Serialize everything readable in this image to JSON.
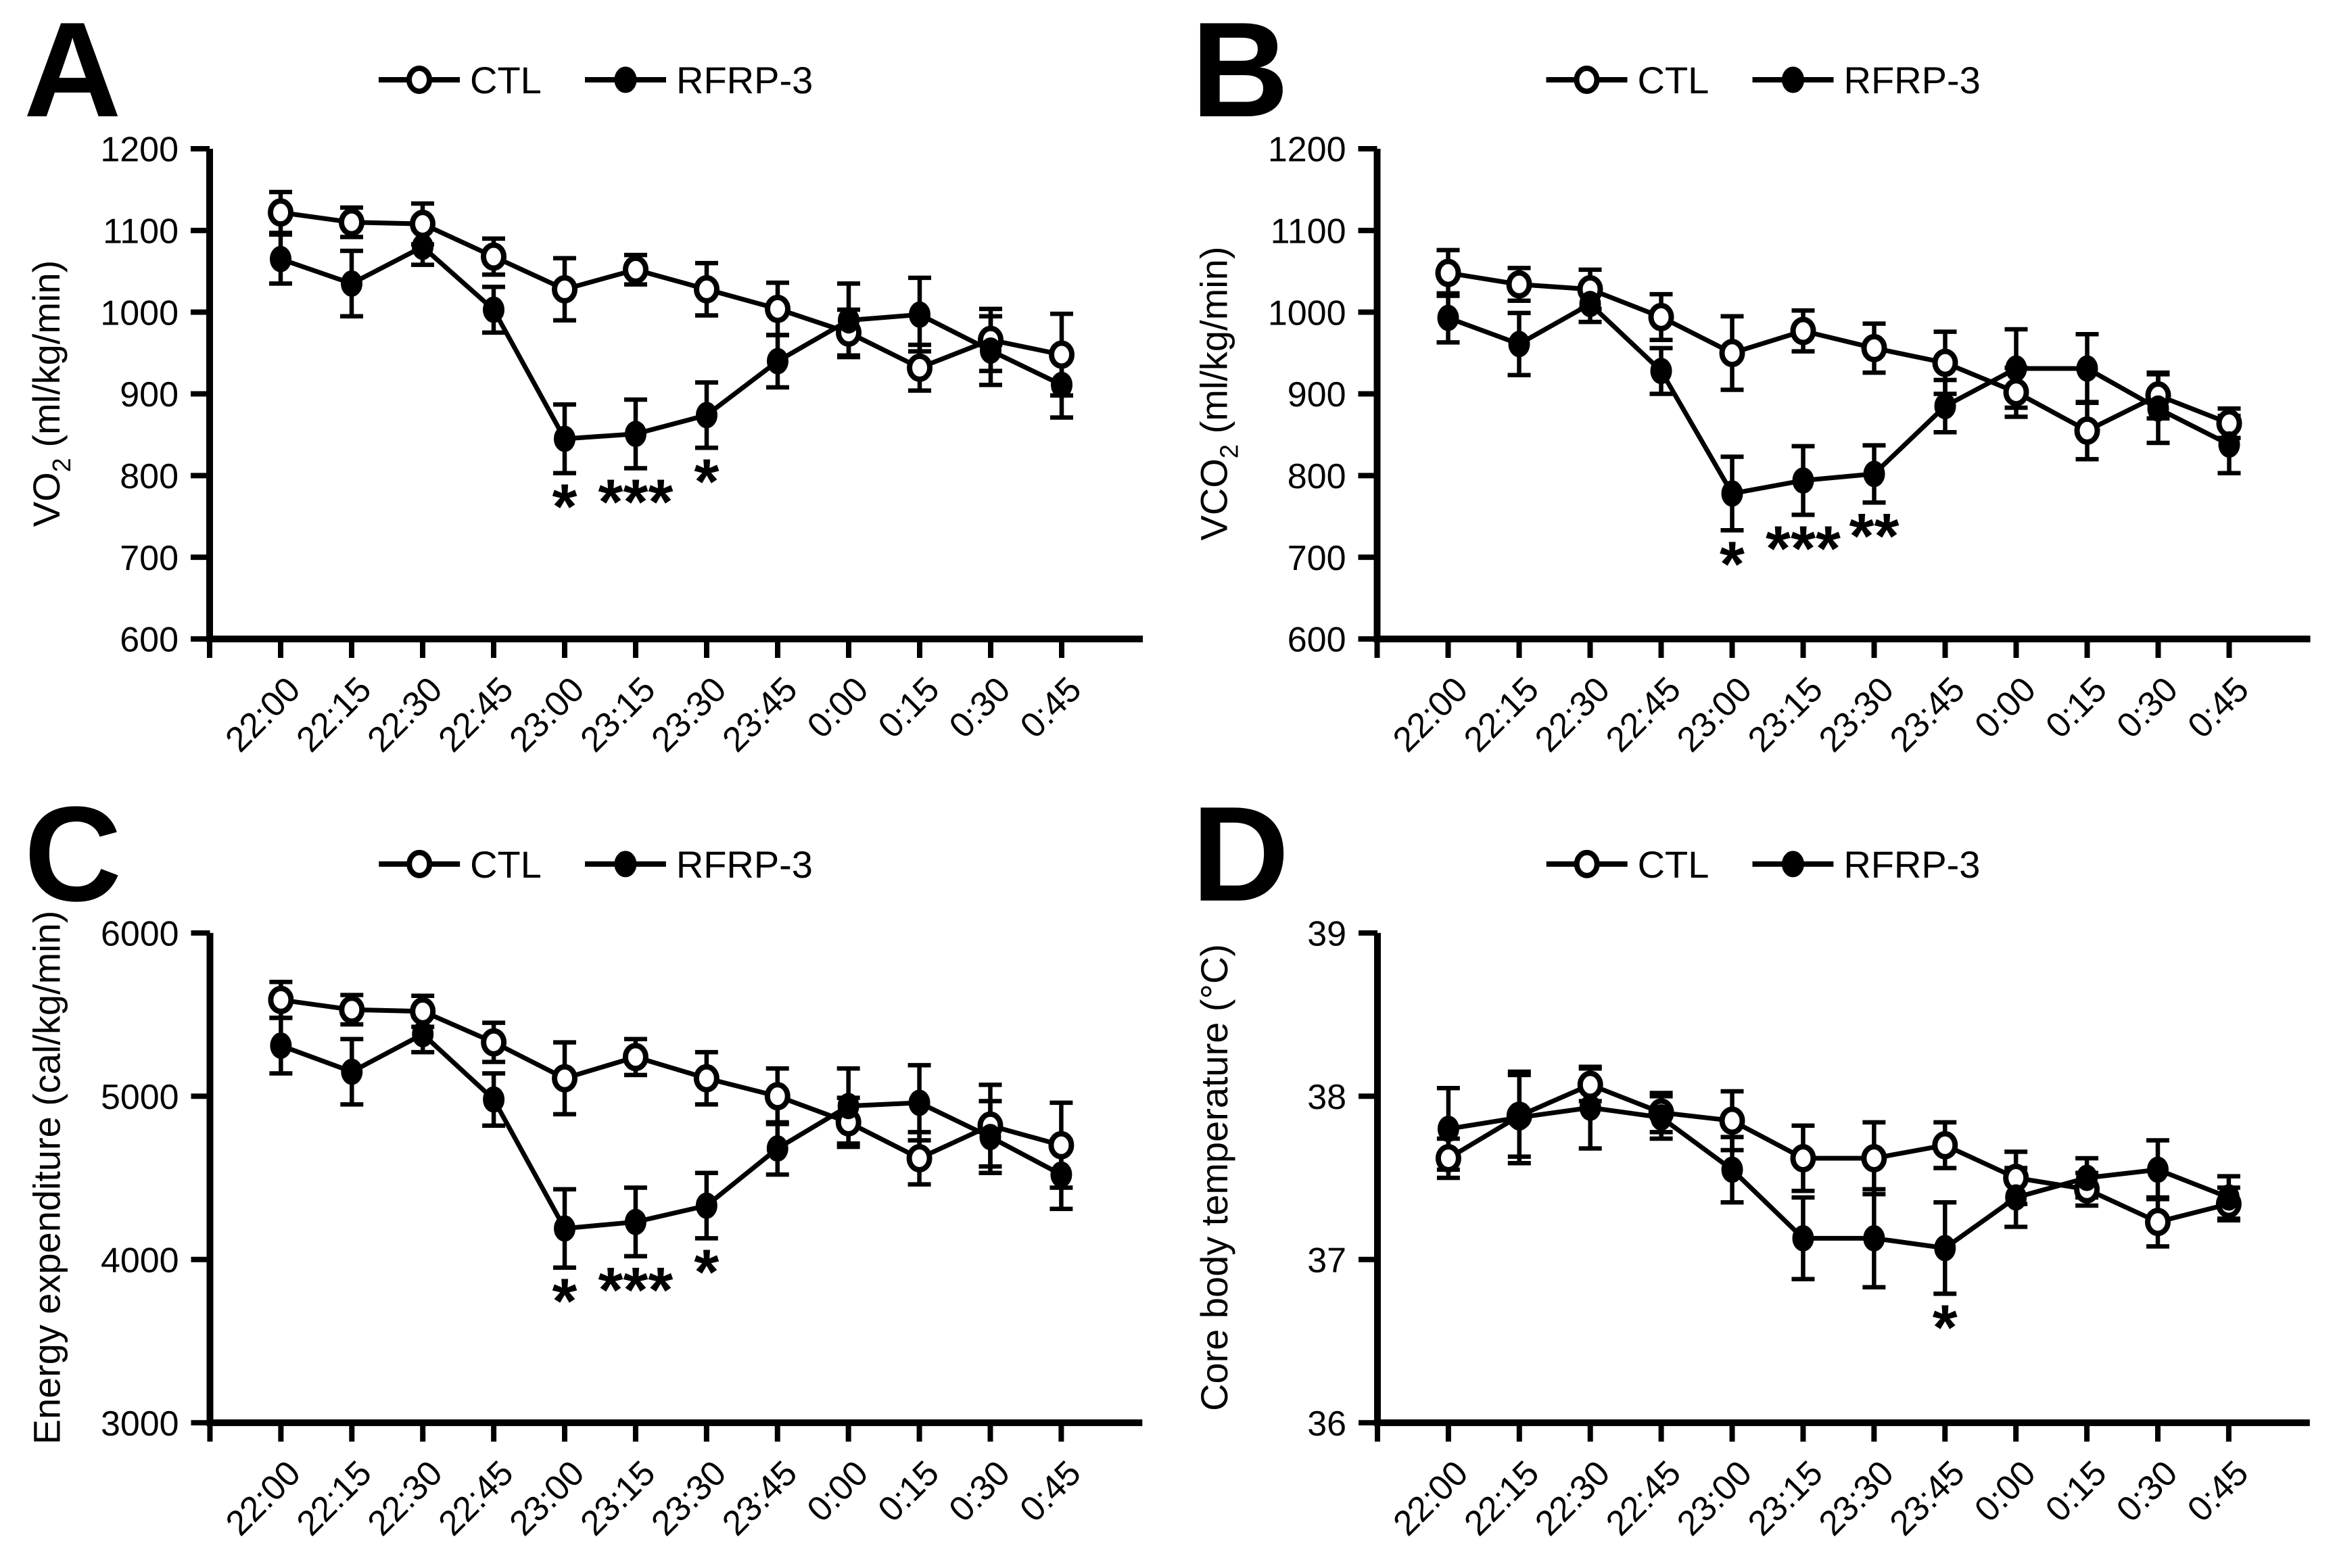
{
  "figure": {
    "background": "#ffffff",
    "ink": "#000000"
  },
  "chart_data": [
    {
      "panel": "A",
      "type": "line",
      "ylabel": [
        {
          "t": "VO"
        },
        {
          "t": "2",
          "sub": true
        },
        {
          "t": " (ml/kg/min)"
        }
      ],
      "ylim": [
        600,
        1200
      ],
      "yticks": [
        600,
        700,
        800,
        900,
        1000,
        1100,
        1200
      ],
      "categories": [
        "22:00",
        "22:15",
        "22:30",
        "22:45",
        "23:00",
        "23:15",
        "23:30",
        "23:45",
        "0:00",
        "0:15",
        "0:30",
        "0:45"
      ],
      "legend_position": "top-center",
      "grid": false,
      "series": [
        {
          "name": "CTL",
          "marker": "open-circle",
          "values": [
            1122,
            1110,
            1108,
            1068,
            1028,
            1052,
            1028,
            1004,
            975,
            932,
            966,
            948
          ],
          "errors": [
            25,
            18,
            25,
            22,
            38,
            18,
            32,
            32,
            28,
            28,
            38,
            50
          ]
        },
        {
          "name": "RFRP-3",
          "marker": "filled-circle",
          "values": [
            1065,
            1035,
            1080,
            1003,
            845,
            851,
            874,
            940,
            990,
            997,
            953,
            911
          ],
          "errors": [
            30,
            40,
            22,
            28,
            42,
            42,
            40,
            32,
            45,
            45,
            42,
            40
          ]
        }
      ],
      "significance": [
        {
          "index": 4,
          "label": "*"
        },
        {
          "index": 5,
          "label": "***"
        },
        {
          "index": 6,
          "label": "*"
        }
      ]
    },
    {
      "panel": "B",
      "type": "line",
      "ylabel": [
        {
          "t": "VCO"
        },
        {
          "t": "2",
          "sub": true
        },
        {
          "t": " (ml/kg/min)"
        }
      ],
      "ylim": [
        600,
        1200
      ],
      "yticks": [
        600,
        700,
        800,
        900,
        1000,
        1100,
        1200
      ],
      "categories": [
        "22:00",
        "22:15",
        "22:30",
        "22:45",
        "23:00",
        "23:15",
        "23:30",
        "23:45",
        "0:00",
        "0:15",
        "0:30",
        "0:45"
      ],
      "legend_position": "top-center",
      "grid": false,
      "series": [
        {
          "name": "CTL",
          "marker": "open-circle",
          "values": [
            1048,
            1034,
            1028,
            994,
            950,
            977,
            956,
            938,
            902,
            855,
            898,
            864
          ],
          "errors": [
            28,
            20,
            24,
            28,
            45,
            25,
            30,
            38,
            30,
            35,
            28,
            18
          ]
        },
        {
          "name": "RFRP-3",
          "marker": "filled-circle",
          "values": [
            993,
            961,
            1010,
            928,
            778,
            794,
            802,
            885,
            931,
            931,
            882,
            838
          ],
          "errors": [
            30,
            38,
            22,
            28,
            45,
            42,
            35,
            32,
            48,
            42,
            42,
            35
          ]
        }
      ],
      "significance": [
        {
          "index": 4,
          "label": "*"
        },
        {
          "index": 5,
          "label": "***"
        },
        {
          "index": 6,
          "label": "**"
        }
      ]
    },
    {
      "panel": "C",
      "type": "line",
      "ylabel": [
        {
          "t": "Energy expenditure (cal/kg/min)"
        }
      ],
      "ylim": [
        3000,
        6000
      ],
      "yticks": [
        3000,
        4000,
        5000,
        6000
      ],
      "categories": [
        "22:00",
        "22:15",
        "22:30",
        "22:45",
        "23:00",
        "23:15",
        "23:30",
        "23:45",
        "0:00",
        "0:15",
        "0:30",
        "0:45"
      ],
      "legend_position": "top-center",
      "grid": false,
      "series": [
        {
          "name": "CTL",
          "marker": "open-circle",
          "values": [
            5590,
            5530,
            5520,
            5330,
            5110,
            5240,
            5110,
            5000,
            4840,
            4620,
            4820,
            4700
          ],
          "errors": [
            110,
            90,
            95,
            120,
            220,
            110,
            160,
            170,
            150,
            160,
            250,
            260
          ]
        },
        {
          "name": "RFRP-3",
          "marker": "filled-circle",
          "values": [
            5310,
            5150,
            5380,
            4980,
            4190,
            4230,
            4330,
            4680,
            4940,
            4960,
            4750,
            4520
          ],
          "errors": [
            170,
            200,
            110,
            160,
            240,
            210,
            200,
            160,
            230,
            230,
            220,
            210
          ]
        }
      ],
      "significance": [
        {
          "index": 4,
          "label": "*"
        },
        {
          "index": 5,
          "label": "***"
        },
        {
          "index": 6,
          "label": "*"
        }
      ]
    },
    {
      "panel": "D",
      "type": "line",
      "ylabel": [
        {
          "t": "Core body temperature (°C)"
        }
      ],
      "ylim": [
        36,
        39
      ],
      "yticks": [
        36,
        37,
        38,
        39
      ],
      "categories": [
        "22:00",
        "22:15",
        "22:30",
        "22:45",
        "23:00",
        "23:15",
        "23:30",
        "23:45",
        "0:00",
        "0:15",
        "0:30",
        "0:45"
      ],
      "legend_position": "top-center",
      "grid": false,
      "series": [
        {
          "name": "CTL",
          "marker": "open-circle",
          "values": [
            37.62,
            37.88,
            38.07,
            37.9,
            37.85,
            37.62,
            37.62,
            37.7,
            37.5,
            37.43,
            37.23,
            37.34
          ],
          "errors": [
            0.12,
            0.25,
            0.1,
            0.12,
            0.18,
            0.2,
            0.22,
            0.14,
            0.16,
            0.1,
            0.15,
            0.1
          ]
        },
        {
          "name": "RFRP-3",
          "marker": "filled-circle",
          "values": [
            37.8,
            37.87,
            37.93,
            37.87,
            37.55,
            37.13,
            37.13,
            37.07,
            37.38,
            37.5,
            37.55,
            37.38
          ],
          "errors": [
            0.25,
            0.28,
            0.25,
            0.13,
            0.2,
            0.25,
            0.3,
            0.28,
            0.18,
            0.12,
            0.18,
            0.13
          ]
        }
      ],
      "significance": [
        {
          "index": 7,
          "label": "*"
        }
      ]
    }
  ]
}
